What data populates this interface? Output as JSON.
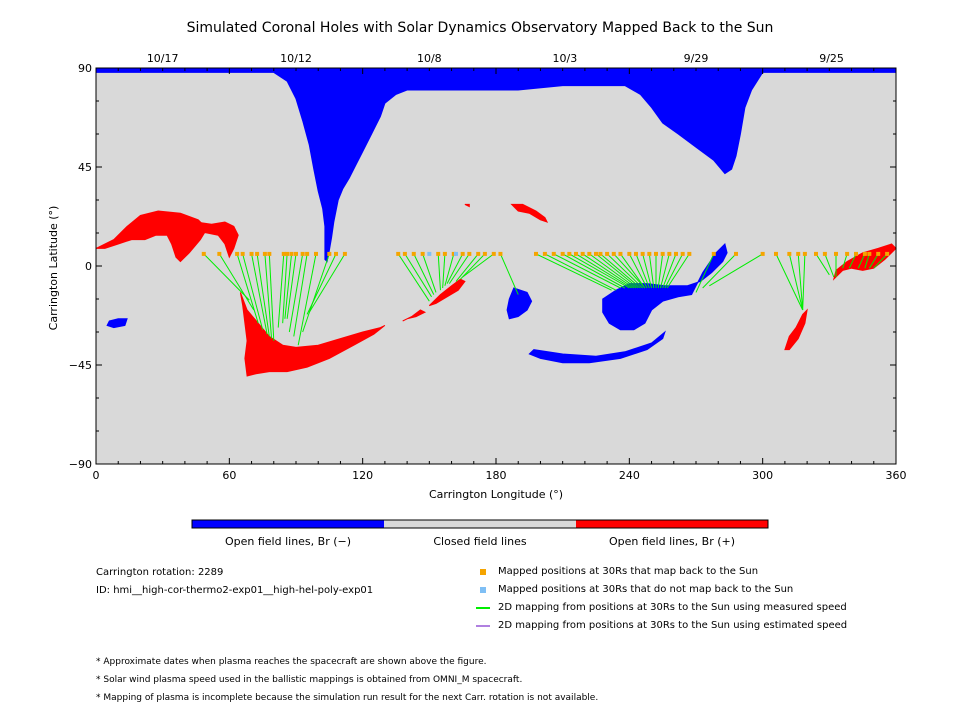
{
  "chart_data": {
    "type": "map",
    "title": "Simulated Coronal Holes with Solar Dynamics Observatory Mapped Back to the Sun",
    "xlabel": "Carrington Longitude (°)",
    "ylabel": "Carrington Latitude (°)",
    "xlim": [
      0,
      360
    ],
    "ylim": [
      -90,
      90
    ],
    "xticks": [
      0,
      60,
      120,
      180,
      240,
      300,
      360
    ],
    "yticks": [
      90,
      45,
      0,
      -45,
      -90
    ],
    "ytick_labels": [
      "90",
      "45",
      "0",
      "−45",
      "−90"
    ],
    "top_date_labels": [
      {
        "label": "10/17",
        "lon": 30
      },
      {
        "label": "10/12",
        "lon": 90
      },
      {
        "label": "10/8",
        "lon": 150
      },
      {
        "label": "10/3",
        "lon": 211
      },
      {
        "label": "9/29",
        "lon": 270
      },
      {
        "label": "9/25",
        "lon": 331
      }
    ],
    "colors": {
      "closed": "#d9d9d9",
      "open_negative": "#0000ff",
      "open_positive": "#ff0000",
      "mapped_yes": "#f5a400",
      "mapped_no": "#7fbff5",
      "line_measured": "#00ee00",
      "line_estimated": "#b080e0"
    },
    "regions_negative": [
      [
        [
          0,
          90
        ],
        [
          360,
          90
        ],
        [
          360,
          88
        ],
        [
          300,
          88
        ],
        [
          295,
          80
        ],
        [
          292,
          72
        ],
        [
          290,
          60
        ],
        [
          288,
          50
        ],
        [
          286,
          44
        ],
        [
          283,
          42
        ],
        [
          278,
          48
        ],
        [
          270,
          54
        ],
        [
          262,
          60
        ],
        [
          255,
          65
        ],
        [
          250,
          72
        ],
        [
          245,
          78
        ],
        [
          238,
          82
        ],
        [
          210,
          82
        ],
        [
          190,
          80
        ],
        [
          180,
          80
        ],
        [
          140,
          80
        ],
        [
          135,
          78
        ],
        [
          130,
          74
        ],
        [
          128,
          68
        ],
        [
          124,
          60
        ],
        [
          120,
          52
        ],
        [
          117,
          46
        ],
        [
          114,
          40
        ],
        [
          111,
          35
        ],
        [
          109,
          30
        ],
        [
          108,
          25
        ],
        [
          107,
          20
        ],
        [
          106,
          13
        ],
        [
          105,
          7
        ],
        [
          104,
          2
        ],
        [
          103,
          3
        ],
        [
          103,
          10
        ],
        [
          103,
          18
        ],
        [
          102,
          26
        ],
        [
          100,
          34
        ],
        [
          98,
          44
        ],
        [
          96,
          55
        ],
        [
          93,
          66
        ],
        [
          90,
          76
        ],
        [
          86,
          84
        ],
        [
          80,
          88
        ],
        [
          0,
          88
        ]
      ],
      [
        [
          6,
          -25
        ],
        [
          10,
          -24
        ],
        [
          14,
          -24
        ],
        [
          13,
          -27
        ],
        [
          8,
          -28
        ],
        [
          5,
          -27
        ]
      ],
      [
        [
          188,
          -10
        ],
        [
          194,
          -12
        ],
        [
          196,
          -16
        ],
        [
          194,
          -20
        ],
        [
          190,
          -23
        ],
        [
          186,
          -24
        ],
        [
          185,
          -20
        ],
        [
          186,
          -15
        ]
      ],
      [
        [
          197,
          -38
        ],
        [
          210,
          -40
        ],
        [
          225,
          -41
        ],
        [
          238,
          -39
        ],
        [
          250,
          -35
        ],
        [
          256,
          -30
        ],
        [
          255,
          -33
        ],
        [
          248,
          -38
        ],
        [
          236,
          -42
        ],
        [
          222,
          -44
        ],
        [
          210,
          -44
        ],
        [
          200,
          -42
        ],
        [
          195,
          -40
        ]
      ],
      [
        [
          228,
          -15
        ],
        [
          234,
          -11
        ],
        [
          240,
          -8
        ],
        [
          248,
          -8
        ],
        [
          256,
          -9
        ],
        [
          266,
          -9
        ],
        [
          272,
          -7
        ],
        [
          277,
          -3
        ],
        [
          282,
          2
        ],
        [
          284,
          6
        ],
        [
          283,
          10
        ],
        [
          279,
          6
        ],
        [
          273,
          -3
        ],
        [
          268,
          -13
        ],
        [
          262,
          -14
        ],
        [
          255,
          -16
        ],
        [
          250,
          -20
        ],
        [
          247,
          -26
        ],
        [
          242,
          -29
        ],
        [
          236,
          -29
        ],
        [
          231,
          -26
        ],
        [
          228,
          -21
        ]
      ]
    ],
    "regions_positive": [
      [
        [
          0,
          8
        ],
        [
          8,
          12
        ],
        [
          14,
          18
        ],
        [
          20,
          23
        ],
        [
          28,
          25
        ],
        [
          38,
          24
        ],
        [
          46,
          21
        ],
        [
          50,
          17
        ],
        [
          47,
          12
        ],
        [
          42,
          6
        ],
        [
          38,
          2
        ],
        [
          36,
          4
        ],
        [
          34,
          10
        ],
        [
          32,
          14
        ],
        [
          27,
          14
        ],
        [
          22,
          12
        ],
        [
          16,
          12
        ],
        [
          10,
          10
        ],
        [
          4,
          8
        ]
      ],
      [
        [
          38,
          22
        ],
        [
          45,
          20
        ],
        [
          52,
          19
        ],
        [
          58,
          20
        ],
        [
          62,
          18
        ],
        [
          64,
          14
        ],
        [
          62,
          8
        ],
        [
          60,
          4
        ],
        [
          58,
          10
        ],
        [
          55,
          14
        ],
        [
          50,
          15
        ],
        [
          44,
          16
        ],
        [
          38,
          18
        ]
      ],
      [
        [
          65,
          -12
        ],
        [
          68,
          -20
        ],
        [
          73,
          -26
        ],
        [
          78,
          -32
        ],
        [
          84,
          -36
        ],
        [
          90,
          -37
        ],
        [
          100,
          -36
        ],
        [
          110,
          -33
        ],
        [
          120,
          -30
        ],
        [
          128,
          -28
        ],
        [
          130,
          -27
        ],
        [
          125,
          -31
        ],
        [
          116,
          -36
        ],
        [
          105,
          -42
        ],
        [
          95,
          -46
        ],
        [
          86,
          -48
        ],
        [
          78,
          -48
        ],
        [
          72,
          -49
        ],
        [
          68,
          -50
        ],
        [
          67,
          -42
        ],
        [
          68,
          -34
        ],
        [
          67,
          -26
        ],
        [
          66,
          -18
        ]
      ],
      [
        [
          150,
          -18
        ],
        [
          155,
          -13
        ],
        [
          160,
          -9
        ],
        [
          164,
          -6
        ],
        [
          166,
          -7
        ],
        [
          163,
          -11
        ],
        [
          158,
          -14
        ],
        [
          153,
          -17
        ]
      ],
      [
        [
          146,
          -20
        ],
        [
          148,
          -21
        ],
        [
          144,
          -23
        ],
        [
          140,
          -24
        ],
        [
          138,
          -25
        ],
        [
          142,
          -23
        ]
      ],
      [
        [
          187,
          28
        ],
        [
          192,
          28
        ],
        [
          198,
          25
        ],
        [
          202,
          22
        ],
        [
          203,
          20
        ],
        [
          200,
          21
        ],
        [
          195,
          24
        ],
        [
          190,
          25
        ]
      ],
      [
        [
          168,
          27
        ],
        [
          168,
          28
        ],
        [
          166,
          28
        ]
      ],
      [
        [
          310,
          -38
        ],
        [
          312,
          -32
        ],
        [
          315,
          -28
        ],
        [
          318,
          -22
        ],
        [
          320,
          -20
        ],
        [
          319,
          -26
        ],
        [
          316,
          -33
        ],
        [
          312,
          -38
        ]
      ],
      [
        [
          332,
          -6
        ],
        [
          336,
          -2
        ],
        [
          340,
          -1
        ],
        [
          345,
          -2
        ],
        [
          350,
          -1
        ],
        [
          355,
          3
        ],
        [
          360,
          8
        ],
        [
          358,
          10
        ],
        [
          352,
          8
        ],
        [
          345,
          6
        ],
        [
          338,
          2
        ],
        [
          333,
          -2
        ]
      ]
    ],
    "mapping": [
      [
        48.5,
        5.5,
        69,
        -15.5
      ],
      [
        55.5,
        5.5,
        71,
        -20
      ],
      [
        63.5,
        5.5,
        73,
        -26
      ],
      [
        66,
        5.5,
        75,
        -29
      ],
      [
        70,
        5.5,
        77,
        -31
      ],
      [
        72.5,
        5.5,
        78,
        -32
      ],
      [
        76,
        5.5,
        79,
        -33
      ],
      [
        78,
        5.5,
        80,
        -34
      ],
      [
        84.5,
        5.5,
        82,
        -28
      ],
      [
        86,
        5.5,
        84,
        -26
      ],
      [
        88,
        5.5,
        85,
        -24
      ],
      [
        90,
        5.5,
        86,
        -24
      ],
      [
        93,
        5.5,
        87,
        -30
      ],
      [
        95,
        5.5,
        89,
        -32
      ],
      [
        99,
        5.5,
        91,
        -36
      ],
      [
        105,
        5.5,
        93,
        -30
      ],
      [
        108,
        5.5,
        95,
        -22
      ],
      [
        112,
        5.5,
        96,
        -21
      ],
      [
        136,
        5.5,
        150,
        -16
      ],
      [
        139,
        5.5,
        151,
        -14
      ],
      [
        143,
        5.5,
        152,
        -13
      ],
      [
        147,
        5.5,
        153,
        -12
      ],
      [
        154,
        5.5,
        155,
        -11
      ],
      [
        157,
        5.5,
        156,
        -10
      ],
      [
        161,
        5.5,
        157,
        -9
      ],
      [
        165,
        5.5,
        158,
        -8
      ],
      [
        168,
        5.5,
        159,
        -8
      ],
      [
        172,
        5.5,
        162,
        -7
      ],
      [
        175,
        5.5,
        164,
        -6
      ],
      [
        179,
        5.5,
        165,
        -5
      ],
      [
        182,
        5.5,
        190,
        -13
      ],
      [
        198,
        5.5,
        232,
        -11
      ],
      [
        202,
        5.5,
        234,
        -11
      ],
      [
        206,
        5.5,
        236,
        -10
      ],
      [
        210,
        5.5,
        238,
        -10
      ],
      [
        213,
        5.5,
        240,
        -10
      ],
      [
        216,
        5.5,
        241,
        -10
      ],
      [
        219,
        5.5,
        242,
        -10
      ],
      [
        222,
        5.5,
        243,
        -10
      ],
      [
        225,
        5.5,
        244,
        -10
      ],
      [
        227,
        5.5,
        245,
        -10
      ],
      [
        230,
        5.5,
        246,
        -10
      ],
      [
        233,
        5.5,
        247,
        -10
      ],
      [
        236,
        5.5,
        247,
        -10
      ],
      [
        240,
        5.5,
        248,
        -10
      ],
      [
        243,
        5.5,
        249,
        -10
      ],
      [
        246,
        5.5,
        250,
        -10
      ],
      [
        249,
        5.5,
        251,
        -10
      ],
      [
        252,
        5.5,
        252,
        -10
      ],
      [
        255,
        5.5,
        253,
        -10
      ],
      [
        258,
        5.5,
        254,
        -10
      ],
      [
        261,
        5.5,
        255,
        -10
      ],
      [
        264,
        5.5,
        256,
        -10
      ],
      [
        267,
        5.5,
        257,
        -10
      ],
      [
        278,
        5.5,
        270,
        -12
      ],
      [
        288,
        5.5,
        273,
        -10
      ],
      [
        300,
        5.5,
        276,
        -9
      ],
      [
        306,
        5.5,
        318,
        -20
      ],
      [
        312,
        5.5,
        318,
        -20
      ],
      [
        316,
        5.5,
        318,
        -20
      ],
      [
        319,
        5.5,
        318,
        -20
      ],
      [
        324,
        5.5,
        330,
        -4
      ],
      [
        328,
        5.5,
        332,
        -5
      ],
      [
        333,
        5.5,
        333,
        -5
      ],
      [
        338,
        5.5,
        336,
        -1
      ],
      [
        342,
        5.5,
        339,
        -1
      ],
      [
        346,
        5.5,
        343,
        -1
      ],
      [
        348,
        5.5,
        346,
        -1
      ],
      [
        352,
        5.5,
        348,
        -1
      ],
      [
        356,
        5.5,
        350,
        -1
      ]
    ],
    "points_mapped": [
      [
        48.5,
        5.5
      ],
      [
        55.5,
        5.5
      ],
      [
        63.5,
        5.5
      ],
      [
        66,
        5.5
      ],
      [
        70,
        5.5
      ],
      [
        72.5,
        5.5
      ],
      [
        76,
        5.5
      ],
      [
        78,
        5.5
      ],
      [
        84.5,
        5.5
      ],
      [
        86,
        5.5
      ],
      [
        88,
        5.5
      ],
      [
        90,
        5.5
      ],
      [
        93,
        5.5
      ],
      [
        95,
        5.5
      ],
      [
        99,
        5.5
      ],
      [
        105,
        5.5
      ],
      [
        108,
        5.5
      ],
      [
        112,
        5.5
      ],
      [
        136,
        5.5
      ],
      [
        139,
        5.5
      ],
      [
        143,
        5.5
      ],
      [
        147,
        5.5
      ],
      [
        154,
        5.5
      ],
      [
        157,
        5.5
      ],
      [
        161,
        5.5
      ],
      [
        165,
        5.5
      ],
      [
        168,
        5.5
      ],
      [
        172,
        5.5
      ],
      [
        175,
        5.5
      ],
      [
        179,
        5.5
      ],
      [
        182,
        5.5
      ],
      [
        198,
        5.5
      ],
      [
        202,
        5.5
      ],
      [
        206,
        5.5
      ],
      [
        210,
        5.5
      ],
      [
        213,
        5.5
      ],
      [
        216,
        5.5
      ],
      [
        219,
        5.5
      ],
      [
        222,
        5.5
      ],
      [
        225,
        5.5
      ],
      [
        227,
        5.5
      ],
      [
        230,
        5.5
      ],
      [
        233,
        5.5
      ],
      [
        236,
        5.5
      ],
      [
        240,
        5.5
      ],
      [
        243,
        5.5
      ],
      [
        246,
        5.5
      ],
      [
        249,
        5.5
      ],
      [
        252,
        5.5
      ],
      [
        255,
        5.5
      ],
      [
        258,
        5.5
      ],
      [
        261,
        5.5
      ],
      [
        264,
        5.5
      ],
      [
        267,
        5.5
      ],
      [
        278,
        5.5
      ],
      [
        288,
        5.5
      ],
      [
        300,
        5.5
      ],
      [
        306,
        5.5
      ],
      [
        312,
        5.5
      ],
      [
        316,
        5.5
      ],
      [
        319,
        5.5
      ],
      [
        324,
        5.5
      ],
      [
        328,
        5.5
      ],
      [
        333,
        5.5
      ],
      [
        338,
        5.5
      ],
      [
        342,
        5.5
      ],
      [
        346,
        5.5
      ],
      [
        348,
        5.5
      ],
      [
        352,
        5.5
      ],
      [
        356,
        5.5
      ]
    ],
    "points_not_mapped": [
      [
        150,
        5.5
      ],
      [
        162,
        5.5
      ]
    ]
  },
  "colorbar": {
    "labels": [
      "Open field lines, Br (−)",
      "Closed field lines",
      "Open field lines, Br (+)"
    ]
  },
  "info": {
    "rotation": "Carrington rotation: 2289",
    "id": "ID: hmi__high-cor-thermo2-exp01__high-hel-poly-exp01"
  },
  "legend": {
    "mapped_yes": "Mapped positions at 30Rs that map back to the Sun",
    "mapped_no": "Mapped positions at 30Rs that do not map back to the Sun",
    "measured": "2D mapping from positions at 30Rs to the Sun using measured speed",
    "estimated": "2D mapping from positions at 30Rs to the Sun using estimated speed"
  },
  "notes": [
    "* Approximate dates when plasma reaches the spacecraft are shown above the figure.",
    "* Solar wind plasma speed used in the ballistic mappings is obtained from OMNI_M spacecraft.",
    "* Mapping of plasma is incomplete because the simulation run result for the next Carr. rotation is not available."
  ]
}
